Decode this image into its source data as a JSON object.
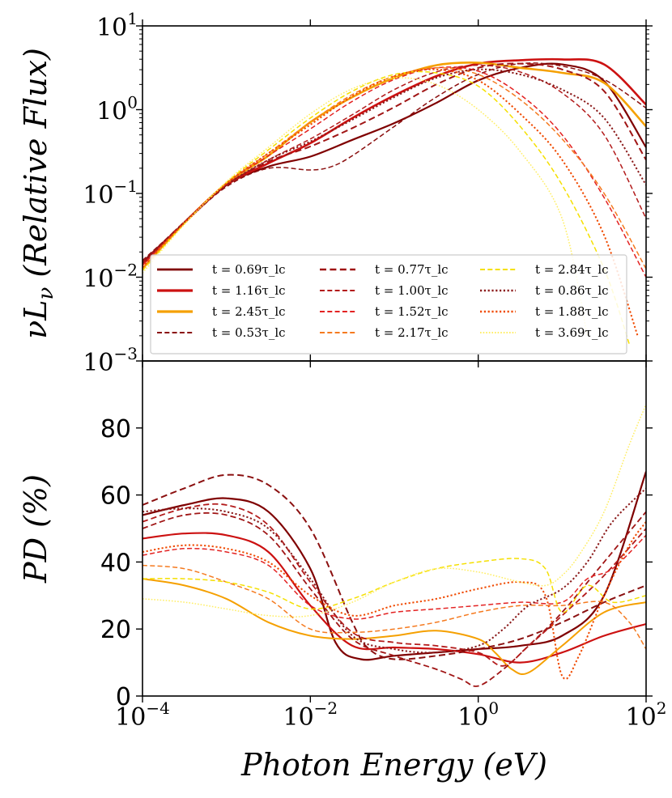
{
  "chart_data": [
    {
      "type": "line",
      "title": "",
      "xlabel": "Photon Energy (eV)",
      "ylabel": "νL_ν (Relative Flux)",
      "ylabel_parts": {
        "main": "νL",
        "sub": "ν",
        "rest": " (Relative Flux)"
      },
      "xscale": "log",
      "yscale": "log",
      "xlim_log10": [
        -4,
        2
      ],
      "ylim_log10": [
        -3,
        1
      ],
      "ytick_labels": [
        {
          "exp": 1,
          "base": "10",
          "sup": "1"
        },
        {
          "exp": 0,
          "base": "10",
          "sup": "0"
        },
        {
          "exp": -1,
          "base": "10",
          "sup": "−1"
        },
        {
          "exp": -2,
          "base": "10",
          "sup": "−2"
        },
        {
          "exp": -3,
          "base": "10",
          "sup": "−3"
        }
      ],
      "legend": {
        "placement": "lower-left",
        "columns": 3,
        "entries": [
          {
            "series": 0,
            "label": "t = 0.69τ_lc"
          },
          {
            "series": 1,
            "label": "t = 1.16τ_lc"
          },
          {
            "series": 2,
            "label": "t = 2.45τ_lc"
          },
          {
            "series": 3,
            "label": "t = 0.53τ_lc"
          },
          {
            "series": 4,
            "label": "t = 0.77τ_lc"
          },
          {
            "series": 5,
            "label": "t = 1.00τ_lc"
          },
          {
            "series": 6,
            "label": "t = 1.52τ_lc"
          },
          {
            "series": 7,
            "label": "t = 2.17τ_lc"
          },
          {
            "series": 8,
            "label": "t = 2.84τ_lc"
          },
          {
            "series": 9,
            "label": "t = 0.86τ_lc"
          },
          {
            "series": 10,
            "label": "t = 1.88τ_lc"
          },
          {
            "series": 11,
            "label": "t = 3.69τ_lc"
          }
        ]
      },
      "series": [
        {
          "name": "t = 0.69τ_lc",
          "t": "0.69",
          "color": "#7f0000",
          "style": "solid",
          "width": 2.2,
          "x_log10": [
            -4,
            -3.5,
            -3,
            -2.5,
            -2,
            -1.5,
            -1,
            -0.5,
            0,
            0.5,
            1,
            1.5,
            2
          ],
          "y_log10": [
            -1.82,
            -1.35,
            -0.9,
            -0.68,
            -0.56,
            -0.36,
            -0.16,
            0.08,
            0.35,
            0.5,
            0.54,
            0.34,
            -0.45
          ]
        },
        {
          "name": "t = 1.16τ_lc",
          "t": "1.16",
          "color": "#cc1111",
          "style": "solid",
          "width": 2.6,
          "x_log10": [
            -4,
            -3.5,
            -3,
            -2.5,
            -2,
            -1.5,
            -1,
            -0.5,
            0,
            0.5,
            1,
            1.5,
            2
          ],
          "y_log10": [
            -1.85,
            -1.35,
            -0.9,
            -0.64,
            -0.4,
            -0.1,
            0.17,
            0.4,
            0.55,
            0.59,
            0.6,
            0.54,
            0.06
          ]
        },
        {
          "name": "t = 2.45τ_lc",
          "t": "2.45",
          "color": "#f5a000",
          "style": "solid",
          "width": 2.6,
          "x_log10": [
            -4,
            -3.5,
            -3,
            -2.5,
            -2,
            -1.5,
            -1,
            -0.5,
            0,
            0.5,
            1,
            1.5,
            2
          ],
          "y_log10": [
            -1.9,
            -1.35,
            -0.88,
            -0.55,
            -0.15,
            0.15,
            0.38,
            0.53,
            0.56,
            0.5,
            0.44,
            0.32,
            -0.2
          ]
        },
        {
          "name": "t = 0.53τ_lc",
          "t": "0.53",
          "color": "#8b1010",
          "style": "dashed",
          "width": 1.5,
          "x_log10": [
            -4,
            -3.5,
            -3,
            -2.5,
            -2,
            -1.75,
            -1.5,
            -1,
            -0.5,
            0,
            0.5,
            1,
            1.5,
            2
          ],
          "y_log10": [
            -1.8,
            -1.35,
            -0.92,
            -0.7,
            -0.72,
            -0.68,
            -0.55,
            -0.2,
            0.15,
            0.42,
            0.55,
            0.52,
            0.36,
            0.02
          ]
        },
        {
          "name": "t = 0.77τ_lc",
          "t": "0.77",
          "color": "#a01515",
          "style": "dashed",
          "width": 2.0,
          "x_log10": [
            -4,
            -3.5,
            -3,
            -2.5,
            -2,
            -1.5,
            -1,
            -0.5,
            0,
            0.5,
            1,
            1.5,
            2
          ],
          "y_log10": [
            -1.82,
            -1.34,
            -0.9,
            -0.62,
            -0.44,
            -0.22,
            0.03,
            0.3,
            0.5,
            0.55,
            0.48,
            0.22,
            -0.6
          ]
        },
        {
          "name": "t = 1.00τ_lc",
          "t": "1.00",
          "color": "#b31b1b",
          "style": "dashed",
          "width": 1.5,
          "x_log10": [
            -4,
            -3.5,
            -3,
            -2.5,
            -2,
            -1.5,
            -1,
            -0.5,
            0,
            0.5,
            1,
            1.5,
            2
          ],
          "y_log10": [
            -1.84,
            -1.34,
            -0.9,
            -0.6,
            -0.35,
            -0.06,
            0.24,
            0.45,
            0.53,
            0.45,
            0.2,
            -0.3,
            -1.3
          ]
        },
        {
          "name": "t = 1.52τ_lc",
          "t": "1.52",
          "color": "#e32222",
          "style": "dashed",
          "width": 1.5,
          "x_log10": [
            -4,
            -3.5,
            -3,
            -2.5,
            -2,
            -1.5,
            -1,
            -0.5,
            0,
            0.5,
            1,
            1.5,
            2
          ],
          "y_log10": [
            -1.86,
            -1.34,
            -0.88,
            -0.55,
            -0.23,
            0.1,
            0.36,
            0.5,
            0.46,
            0.18,
            -0.3,
            -1.05,
            -2.0
          ]
        },
        {
          "name": "t = 2.17τ_lc",
          "t": "2.17",
          "color": "#f57a1f",
          "style": "dashed",
          "width": 1.5,
          "x_log10": [
            -4,
            -3.5,
            -3,
            -2.5,
            -2,
            -1.5,
            -1,
            -0.5,
            0,
            0.5,
            1,
            1.5,
            2
          ],
          "y_log10": [
            -1.9,
            -1.36,
            -0.88,
            -0.52,
            -0.15,
            0.18,
            0.4,
            0.5,
            0.42,
            0.12,
            -0.35,
            -1.0,
            -1.9
          ]
        },
        {
          "name": "t = 2.84τ_lc",
          "t": "2.84",
          "color": "#f5e000",
          "style": "dashed",
          "width": 1.5,
          "x_log10": [
            -4,
            -3.5,
            -3,
            -2.5,
            -2,
            -1.5,
            -1,
            -0.5,
            0,
            0.5,
            1,
            1.5,
            1.8
          ],
          "y_log10": [
            -1.92,
            -1.36,
            -0.87,
            -0.48,
            -0.1,
            0.22,
            0.42,
            0.44,
            0.28,
            -0.2,
            -0.9,
            -1.9,
            -2.8
          ]
        },
        {
          "name": "t = 0.86τ_lc",
          "t": "0.86",
          "color": "#8b1a1a",
          "style": "dotted",
          "width": 2.0,
          "x_log10": [
            -4,
            -3.5,
            -3,
            -2.5,
            -2,
            -1.5,
            -1,
            -0.5,
            0,
            0.5,
            1,
            1.5,
            2
          ],
          "y_log10": [
            -1.83,
            -1.34,
            -0.9,
            -0.6,
            -0.38,
            -0.12,
            0.15,
            0.38,
            0.48,
            0.42,
            0.24,
            -0.1,
            -0.9
          ]
        },
        {
          "name": "t = 1.88τ_lc",
          "t": "1.88",
          "color": "#f04a00",
          "style": "dotted",
          "width": 2.0,
          "x_log10": [
            -4,
            -3.5,
            -3,
            -2.5,
            -2,
            -1.5,
            -1,
            -0.5,
            0,
            0.5,
            1,
            1.5,
            1.9
          ],
          "y_log10": [
            -1.88,
            -1.35,
            -0.88,
            -0.52,
            -0.18,
            0.16,
            0.4,
            0.48,
            0.35,
            -0.05,
            -0.6,
            -1.5,
            -2.7
          ]
        },
        {
          "name": "t = 3.69τ_lc",
          "t": "3.69",
          "color": "#ffee66",
          "style": "dotted",
          "width": 1.5,
          "x_log10": [
            -4,
            -3.5,
            -3,
            -2.5,
            -2,
            -1.5,
            -1,
            -0.5,
            0,
            0.5,
            1,
            1.3
          ],
          "y_log10": [
            -1.95,
            -1.37,
            -0.86,
            -0.45,
            -0.05,
            0.25,
            0.38,
            0.3,
            0.0,
            -0.5,
            -1.3,
            -2.7
          ]
        }
      ]
    },
    {
      "type": "line",
      "title": "",
      "xlabel": "Photon Energy (eV)",
      "ylabel": "PD (%)",
      "ylabel_parts": {
        "main": "PD",
        "rest": " (%)"
      },
      "xscale": "log",
      "yscale": "linear",
      "xlim_log10": [
        -4,
        2
      ],
      "ylim": [
        0,
        100
      ],
      "ytick_labels": [
        "0",
        "20",
        "40",
        "60",
        "80"
      ],
      "xtick_labels": [
        {
          "exp": -4,
          "base": "10",
          "sup": "−4"
        },
        {
          "exp": -2,
          "base": "10",
          "sup": "−2"
        },
        {
          "exp": 0,
          "base": "10",
          "sup": "0"
        },
        {
          "exp": 2,
          "base": "10",
          "sup": "2"
        }
      ],
      "series": [
        {
          "name": "t = 0.69τ_lc",
          "color": "#7f0000",
          "style": "solid",
          "width": 2.2,
          "x_log10": [
            -4,
            -3.5,
            -3,
            -2.5,
            -2,
            -1.7,
            -1.4,
            -1,
            -0.5,
            0,
            0.5,
            1,
            1.5,
            2
          ],
          "y": [
            54,
            57,
            59,
            55,
            38,
            16,
            11,
            12,
            13,
            14,
            15,
            18,
            30,
            67
          ]
        },
        {
          "name": "t = 1.16τ_lc",
          "color": "#cc1111",
          "style": "solid",
          "width": 2.2,
          "x_log10": [
            -4,
            -3.5,
            -3,
            -2.5,
            -2,
            -1.5,
            -1,
            -0.5,
            0,
            0.5,
            1,
            1.5,
            2
          ],
          "y": [
            47,
            48.5,
            48,
            43,
            27,
            15,
            14.5,
            14,
            12.5,
            10,
            13,
            18,
            21.5
          ]
        },
        {
          "name": "t = 2.45τ_lc",
          "color": "#f5a000",
          "style": "solid",
          "width": 2.0,
          "x_log10": [
            -4,
            -3.5,
            -3,
            -2.5,
            -2,
            -1.5,
            -1,
            -0.5,
            0,
            0.2,
            0.4,
            0.6,
            1,
            1.5,
            2
          ],
          "y": [
            35,
            33,
            29,
            22,
            18,
            17,
            18,
            19.5,
            17,
            13,
            8,
            7,
            15,
            25,
            28
          ]
        },
        {
          "name": "t = 0.53τ_lc",
          "color": "#8b1010",
          "style": "dashed",
          "width": 2.0,
          "x_log10": [
            -4,
            -3.5,
            -3,
            -2.5,
            -2,
            -1.5,
            -1.3,
            -1,
            -0.5,
            0,
            0.5,
            1,
            1.5,
            2
          ],
          "y": [
            57,
            62,
            66,
            63,
            50,
            22,
            14,
            11,
            12,
            14,
            17,
            22,
            28,
            33
          ]
        },
        {
          "name": "t = 0.77τ_lc",
          "color": "#a01515",
          "style": "dashed",
          "width": 1.8,
          "x_log10": [
            -4,
            -3.5,
            -3,
            -2.5,
            -2,
            -1.5,
            -1,
            -0.5,
            -0.2,
            0,
            0.3,
            0.6,
            1,
            1.5,
            2
          ],
          "y": [
            50,
            54,
            54,
            48,
            32,
            17,
            12,
            8,
            5,
            3,
            8,
            15,
            25,
            40,
            55
          ]
        },
        {
          "name": "t = 1.00τ_lc",
          "color": "#b31b1b",
          "style": "dashed",
          "width": 1.8,
          "x_log10": [
            -4,
            -3.5,
            -3,
            -2.5,
            -2,
            -1.5,
            -1,
            -0.5,
            0,
            0.3,
            0.6,
            1,
            1.5,
            2
          ],
          "y": [
            52,
            56,
            57,
            51,
            34,
            19,
            16,
            15,
            13,
            9,
            15,
            24,
            36,
            50
          ]
        },
        {
          "name": "t = 1.52τ_lc",
          "color": "#e32222",
          "style": "dashed",
          "width": 1.5,
          "x_log10": [
            -4,
            -3.5,
            -3,
            -2.5,
            -2,
            -1.5,
            -1,
            -0.5,
            0,
            0.5,
            1,
            1.3,
            1.6,
            2
          ],
          "y": [
            42,
            44,
            43,
            39,
            27,
            23,
            25,
            26,
            27,
            28,
            28,
            35,
            38,
            48
          ]
        },
        {
          "name": "t = 2.17τ_lc",
          "color": "#f57a1f",
          "style": "dashed",
          "width": 1.5,
          "x_log10": [
            -4,
            -3.5,
            -3,
            -2.5,
            -2,
            -1.5,
            -1,
            -0.5,
            0,
            0.5,
            1,
            1.5,
            1.8,
            2
          ],
          "y": [
            39,
            38,
            34,
            29,
            20,
            19,
            20,
            22,
            25,
            27,
            27,
            28,
            22,
            14
          ]
        },
        {
          "name": "t = 2.84τ_lc",
          "color": "#f5e000",
          "style": "dashed",
          "width": 1.5,
          "x_log10": [
            -4,
            -3.5,
            -3,
            -2.5,
            -2,
            -1.5,
            -1,
            -0.5,
            0,
            0.5,
            0.8,
            1,
            1.3,
            1.6,
            2
          ],
          "y": [
            35,
            35,
            34,
            31,
            26,
            29,
            34,
            38,
            40,
            41,
            38,
            25,
            33,
            28,
            30
          ]
        },
        {
          "name": "t = 0.86τ_lc",
          "color": "#8b1a1a",
          "style": "dotted",
          "width": 2.0,
          "x_log10": [
            -4,
            -3.5,
            -3,
            -2.5,
            -2,
            -1.5,
            -1,
            -0.5,
            0,
            0.3,
            0.6,
            1,
            1.3,
            1.6,
            2
          ],
          "y": [
            55,
            56,
            55,
            50,
            35,
            18,
            14,
            13,
            15,
            20,
            27,
            32,
            40,
            52,
            62
          ]
        },
        {
          "name": "t = 1.88τ_lc",
          "color": "#f04a00",
          "style": "dotted",
          "width": 2.0,
          "x_log10": [
            -4,
            -3.5,
            -3,
            -2.5,
            -2,
            -1.5,
            -1,
            -0.5,
            0,
            0.5,
            0.8,
            1,
            1.2,
            1.5,
            1.8,
            2
          ],
          "y": [
            43,
            45,
            44,
            40,
            30,
            24,
            27,
            29,
            32,
            34,
            30,
            6,
            12,
            30,
            45,
            52
          ]
        },
        {
          "name": "t = 3.69τ_lc",
          "color": "#ffee66",
          "style": "dotted",
          "width": 1.5,
          "x_log10": [
            -4,
            -3.5,
            -3,
            -2.5,
            -2,
            -1.5,
            -1,
            -0.5,
            0,
            0.5,
            0.8,
            1,
            1.2,
            1.5,
            1.8,
            2
          ],
          "y": [
            29,
            28,
            26,
            24,
            24,
            28,
            34,
            38,
            37,
            34,
            33,
            36,
            42,
            55,
            75,
            87
          ]
        }
      ]
    }
  ]
}
